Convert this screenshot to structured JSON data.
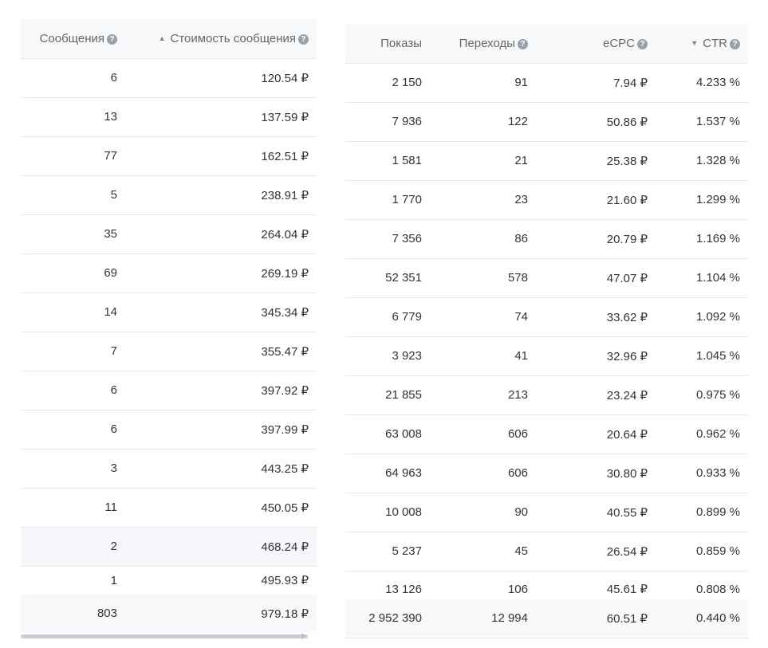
{
  "left_table": {
    "columns": [
      {
        "label": "Сообщения",
        "help": "?"
      },
      {
        "label": "Стоимость сообщения",
        "help": "?",
        "sort": "▲"
      }
    ],
    "rows": [
      [
        "6",
        "120.54 ₽"
      ],
      [
        "13",
        "137.59 ₽"
      ],
      [
        "77",
        "162.51 ₽"
      ],
      [
        "5",
        "238.91 ₽"
      ],
      [
        "35",
        "264.04 ₽"
      ],
      [
        "69",
        "269.19 ₽"
      ],
      [
        "14",
        "345.34 ₽"
      ],
      [
        "7",
        "355.47 ₽"
      ],
      [
        "6",
        "397.92 ₽"
      ],
      [
        "6",
        "397.99 ₽"
      ],
      [
        "3",
        "443.25 ₽"
      ],
      [
        "11",
        "450.05 ₽"
      ],
      [
        "2",
        "468.24 ₽"
      ],
      [
        "1",
        "495.93 ₽"
      ]
    ],
    "totals": [
      "803",
      "979.18 ₽"
    ]
  },
  "right_table": {
    "columns": [
      {
        "label": "Показы"
      },
      {
        "label": "Переходы",
        "help": "?"
      },
      {
        "label": "eCPC",
        "help": "?"
      },
      {
        "label": "CTR",
        "help": "?",
        "sort": "▼"
      }
    ],
    "rows": [
      [
        "2 150",
        "91",
        "7.94 ₽",
        "4.233 %"
      ],
      [
        "7 936",
        "122",
        "50.86 ₽",
        "1.537 %"
      ],
      [
        "1 581",
        "21",
        "25.38 ₽",
        "1.328 %"
      ],
      [
        "1 770",
        "23",
        "21.60 ₽",
        "1.299 %"
      ],
      [
        "7 356",
        "86",
        "20.79 ₽",
        "1.169 %"
      ],
      [
        "52 351",
        "578",
        "47.07 ₽",
        "1.104 %"
      ],
      [
        "6 779",
        "74",
        "33.62 ₽",
        "1.092 %"
      ],
      [
        "3 923",
        "41",
        "32.96 ₽",
        "1.045 %"
      ],
      [
        "21 855",
        "213",
        "23.24 ₽",
        "0.975 %"
      ],
      [
        "63 008",
        "606",
        "20.64 ₽",
        "0.962 %"
      ],
      [
        "64 963",
        "606",
        "30.80 ₽",
        "0.933 %"
      ],
      [
        "10 008",
        "90",
        "40.55 ₽",
        "0.899 %"
      ],
      [
        "5 237",
        "45",
        "26.54 ₽",
        "0.859 %"
      ],
      [
        "13 126",
        "106",
        "45.61 ₽",
        "0.808 %"
      ]
    ],
    "totals": [
      "2 952 390",
      "12 994",
      "60.51 ₽",
      "0.440 %"
    ]
  }
}
